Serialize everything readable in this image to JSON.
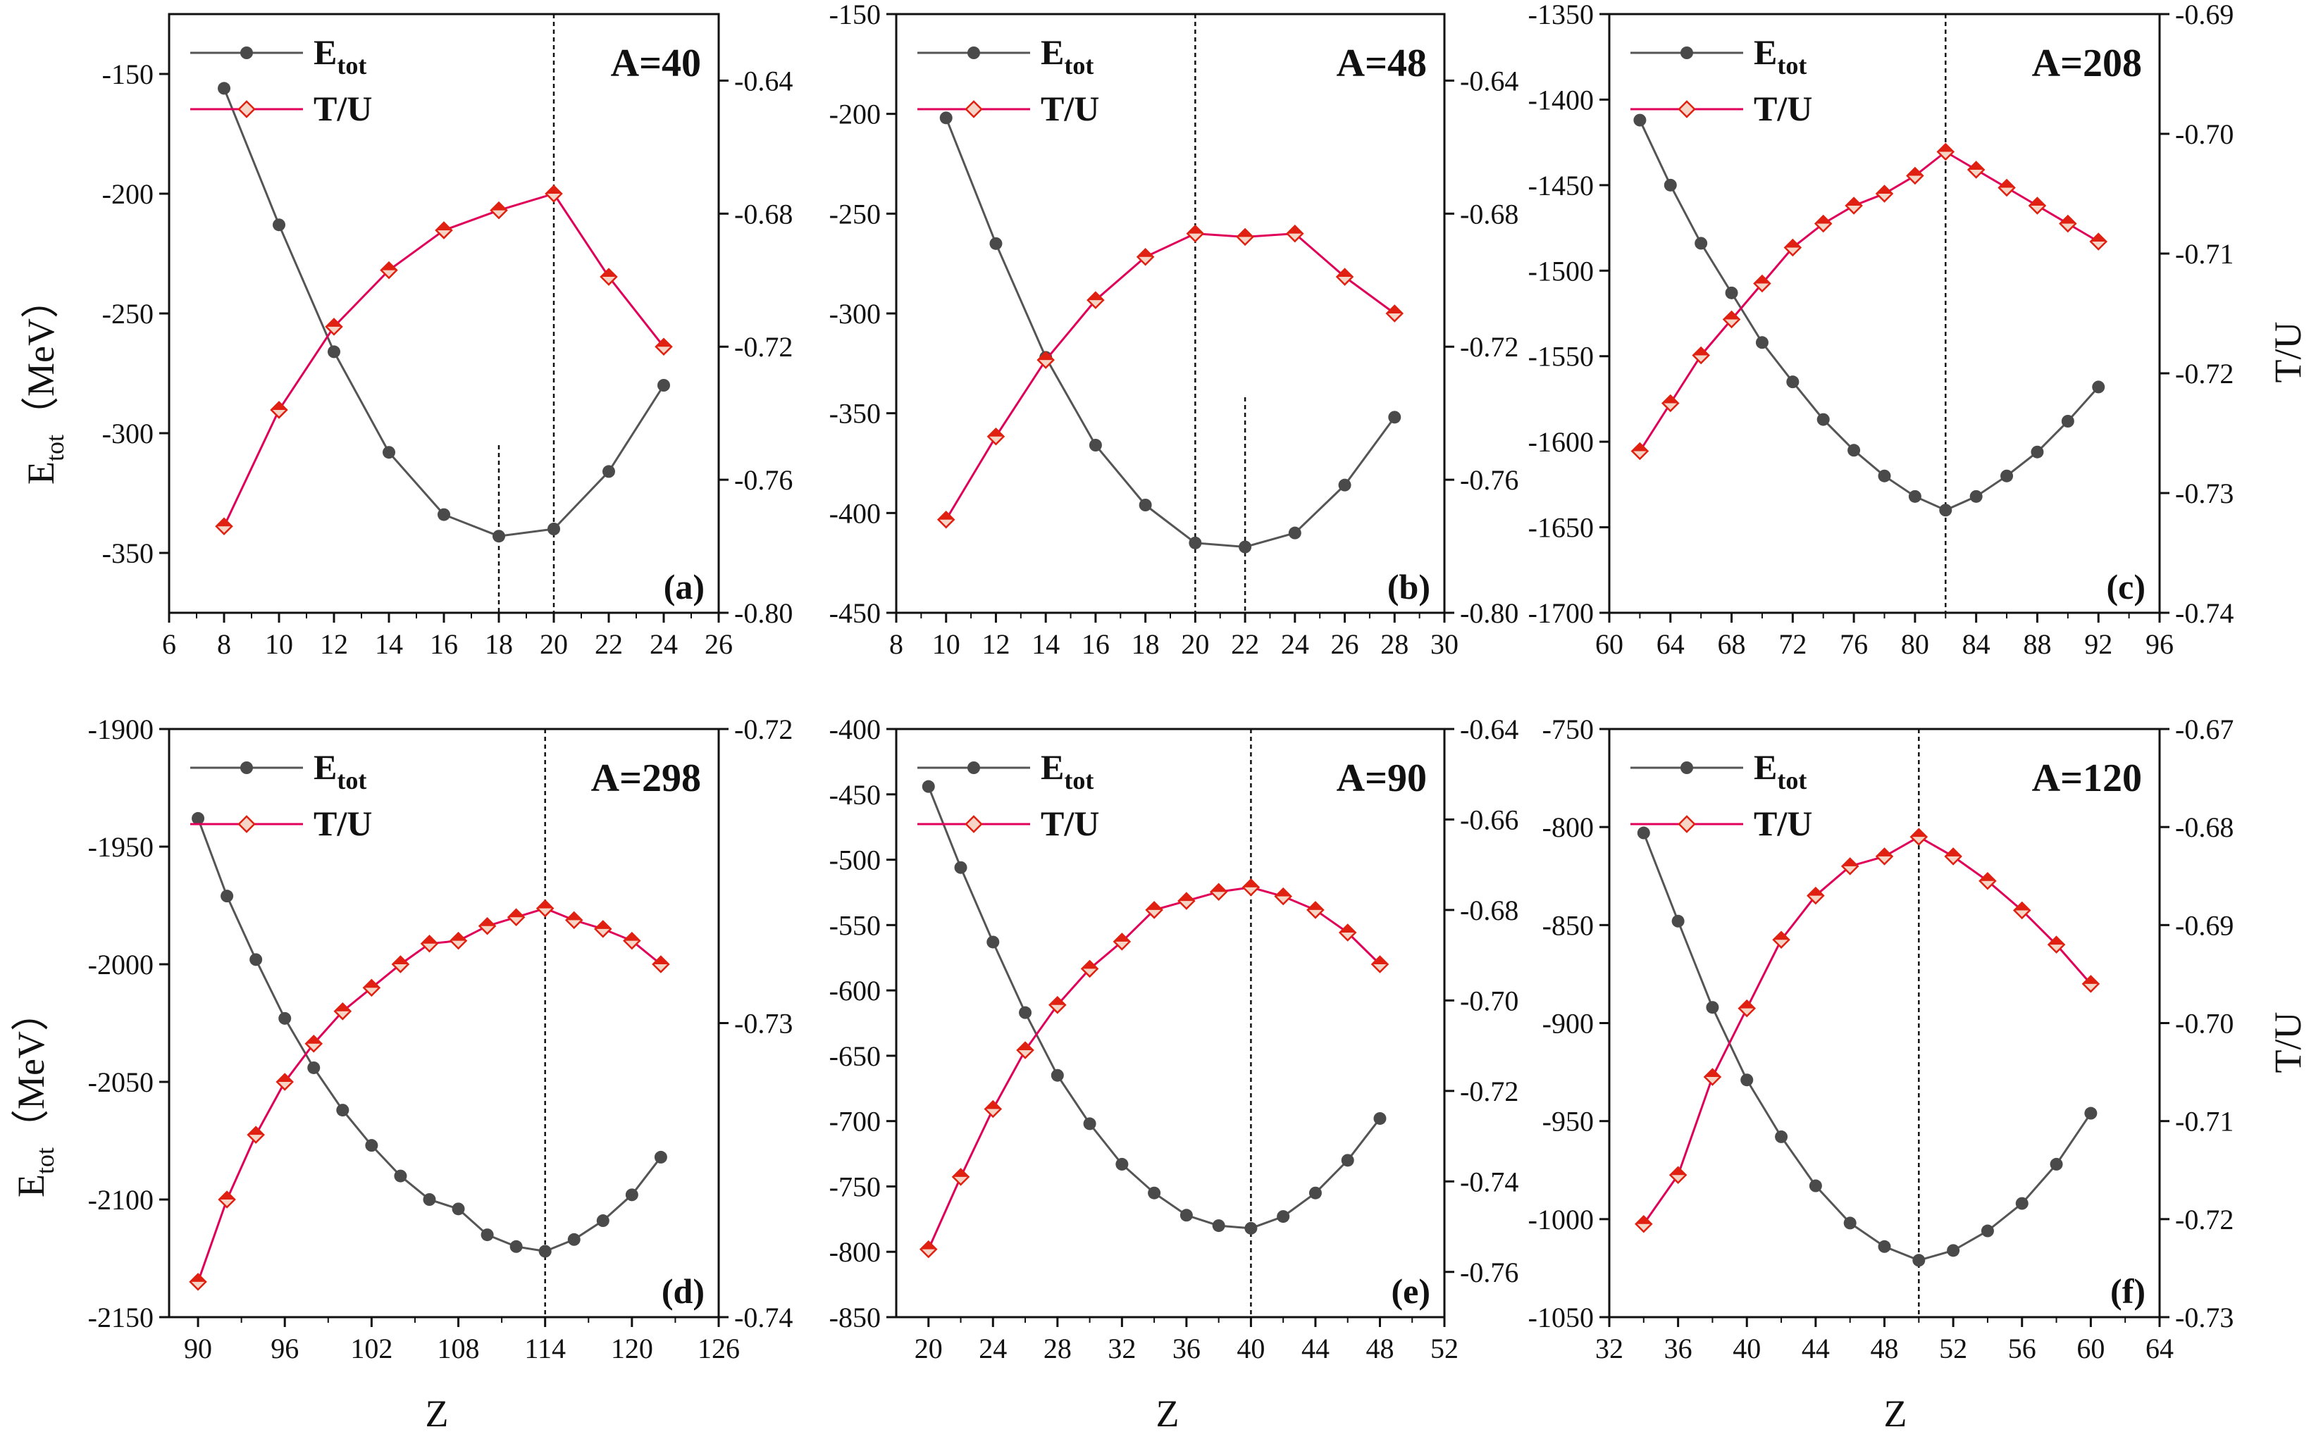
{
  "figure": {
    "left_axis_title_main": "E",
    "left_axis_title_sub": "tot",
    "left_axis_title_unit": "（MeV）",
    "right_axis_title": "T/U",
    "x_axis_title": "Z"
  },
  "colors": {
    "etot_line": "#555555",
    "etot_marker": "#4a4a4a",
    "tu_line": "#e0005a",
    "tu_marker_fill": "#e02010",
    "tu_marker_alt": "#f5d5c5",
    "axis": "#111111",
    "dashed_line": "#111111"
  },
  "chart_data": [
    {
      "type": "line",
      "title": "A=40",
      "tag": "(a)",
      "xlabel": "",
      "ylabel": "Etot（MeV）",
      "y2label": "",
      "xlim": [
        6,
        26
      ],
      "ylim": [
        -375,
        -125
      ],
      "y2lim": [
        -0.8,
        -0.62
      ],
      "xticks": [
        "6",
        "8",
        "10",
        "12",
        "14",
        "16",
        "18",
        "20",
        "22",
        "24",
        "26"
      ],
      "yticks": [
        "-150",
        "-200",
        "-250",
        "-300",
        "-350"
      ],
      "y2ticks": [
        "-0.64",
        "-0.68",
        "-0.72",
        "-0.76",
        "-0.80"
      ],
      "legend": [
        "E",
        "T/U"
      ],
      "legend_sub": [
        "tot",
        ""
      ],
      "vlines": [
        {
          "x": 18,
          "y_top": -305
        },
        {
          "x": 20,
          "y_top": -125
        }
      ],
      "series": [
        {
          "name": "Etot",
          "axis": "left",
          "x": [
            8,
            10,
            12,
            14,
            16,
            18,
            20,
            22,
            24
          ],
          "values": [
            -156,
            -213,
            -266,
            -308,
            -334,
            -343,
            -340,
            -316,
            -280
          ]
        },
        {
          "name": "T/U",
          "axis": "right",
          "x": [
            8,
            10,
            12,
            14,
            16,
            18,
            20,
            22,
            24
          ],
          "values": [
            -0.774,
            -0.739,
            -0.714,
            -0.697,
            -0.685,
            -0.679,
            -0.674,
            -0.699,
            -0.72
          ]
        }
      ]
    },
    {
      "type": "line",
      "title": "A=48",
      "tag": "(b)",
      "xlabel": "",
      "ylabel": "",
      "y2label": "",
      "xlim": [
        8,
        30
      ],
      "ylim": [
        -450,
        -150
      ],
      "y2lim": [
        -0.8,
        -0.62
      ],
      "xticks": [
        "8",
        "10",
        "12",
        "14",
        "16",
        "18",
        "20",
        "22",
        "24",
        "26",
        "28",
        "30"
      ],
      "yticks": [
        "-150",
        "-200",
        "-250",
        "-300",
        "-350",
        "-400",
        "-450"
      ],
      "y2ticks": [
        "-0.64",
        "-0.68",
        "-0.72",
        "-0.76",
        "-0.80"
      ],
      "legend": [
        "E",
        "T/U"
      ],
      "legend_sub": [
        "tot",
        ""
      ],
      "vlines": [
        {
          "x": 20,
          "y_top": -150
        },
        {
          "x": 22,
          "y_top": -342
        }
      ],
      "series": [
        {
          "name": "Etot",
          "axis": "left",
          "x": [
            10,
            12,
            14,
            16,
            18,
            20,
            22,
            24,
            26,
            28
          ],
          "values": [
            -202,
            -265,
            -322,
            -366,
            -396,
            -415,
            -417,
            -410,
            -386,
            -352
          ]
        },
        {
          "name": "T/U",
          "axis": "right",
          "x": [
            10,
            12,
            14,
            16,
            18,
            20,
            22,
            24,
            26,
            28
          ],
          "values": [
            -0.772,
            -0.747,
            -0.724,
            -0.706,
            -0.693,
            -0.686,
            -0.687,
            -0.686,
            -0.699,
            -0.71
          ]
        }
      ]
    },
    {
      "type": "line",
      "title": "A=208",
      "tag": "(c)",
      "xlabel": "",
      "ylabel": "",
      "y2label": "T/U",
      "xlim": [
        60,
        96
      ],
      "ylim": [
        -1700,
        -1350
      ],
      "y2lim": [
        -0.74,
        -0.69
      ],
      "xticks": [
        "60",
        "64",
        "68",
        "72",
        "76",
        "80",
        "84",
        "88",
        "92",
        "96"
      ],
      "yticks": [
        "-1350",
        "-1400",
        "-1450",
        "-1500",
        "-1550",
        "-1600",
        "-1650",
        "-1700"
      ],
      "y2ticks": [
        "-0.69",
        "-0.70",
        "-0.71",
        "-0.72",
        "-0.73",
        "-0.74"
      ],
      "legend": [
        "E",
        "T/U"
      ],
      "legend_sub": [
        "tot",
        ""
      ],
      "vlines": [
        {
          "x": 82,
          "y_top": -1350
        }
      ],
      "series": [
        {
          "name": "Etot",
          "axis": "left",
          "x": [
            62,
            64,
            66,
            68,
            70,
            72,
            74,
            76,
            78,
            80,
            82,
            84,
            86,
            88,
            90,
            92
          ],
          "values": [
            -1412,
            -1450,
            -1484,
            -1513,
            -1542,
            -1565,
            -1587,
            -1605,
            -1620,
            -1632,
            -1640,
            -1632,
            -1620,
            -1606,
            -1588,
            -1568
          ]
        },
        {
          "name": "T/U",
          "axis": "right",
          "x": [
            62,
            64,
            66,
            68,
            70,
            72,
            74,
            76,
            78,
            80,
            82,
            84,
            86,
            88,
            90,
            92
          ],
          "values": [
            -0.7265,
            -0.7225,
            -0.7185,
            -0.7155,
            -0.7125,
            -0.7095,
            -0.7075,
            -0.706,
            -0.705,
            -0.7035,
            -0.7015,
            -0.703,
            -0.7045,
            -0.706,
            -0.7075,
            -0.709
          ]
        }
      ]
    },
    {
      "type": "line",
      "title": "A=298",
      "tag": "(d)",
      "xlabel": "Z",
      "ylabel": "Etot（MeV）",
      "y2label": "",
      "xlim": [
        88,
        126
      ],
      "ylim": [
        -2150,
        -1900
      ],
      "y2lim": [
        -0.74,
        -0.72
      ],
      "xticks": [
        "90",
        "96",
        "102",
        "108",
        "114",
        "120",
        "126"
      ],
      "xtick_values": [
        90,
        96,
        102,
        108,
        114,
        120,
        126
      ],
      "yticks": [
        "-1900",
        "-1950",
        "-2000",
        "-2050",
        "-2100",
        "-2150"
      ],
      "y2ticks": [
        "-0.72",
        "-0.73",
        "-0.74"
      ],
      "legend": [
        "E",
        "T/U"
      ],
      "legend_sub": [
        "tot",
        ""
      ],
      "vlines": [
        {
          "x": 114,
          "y_top": -1900
        }
      ],
      "series": [
        {
          "name": "Etot",
          "axis": "left",
          "x": [
            90,
            92,
            94,
            96,
            98,
            100,
            102,
            104,
            106,
            108,
            110,
            112,
            114,
            116,
            118,
            120,
            122
          ],
          "values": [
            -1938,
            -1971,
            -1998,
            -2023,
            -2044,
            -2062,
            -2077,
            -2090,
            -2100,
            -2104,
            -2115,
            -2120,
            -2122,
            -2117,
            -2109,
            -2098,
            -2082
          ]
        },
        {
          "name": "T/U",
          "axis": "right",
          "x": [
            90,
            92,
            94,
            96,
            98,
            100,
            102,
            104,
            106,
            108,
            110,
            112,
            114,
            116,
            118,
            120,
            122
          ],
          "values": [
            -0.7388,
            -0.736,
            -0.7338,
            -0.732,
            -0.7307,
            -0.7296,
            -0.7288,
            -0.728,
            -0.7273,
            -0.7272,
            -0.7267,
            -0.7264,
            -0.7261,
            -0.7265,
            -0.7268,
            -0.7272,
            -0.728
          ]
        }
      ]
    },
    {
      "type": "line",
      "title": "A=90",
      "tag": "(e)",
      "xlabel": "Z",
      "ylabel": "",
      "y2label": "",
      "xlim": [
        18,
        52
      ],
      "ylim": [
        -850,
        -400
      ],
      "y2lim": [
        -0.77,
        -0.64
      ],
      "xticks": [
        "20",
        "24",
        "28",
        "32",
        "36",
        "40",
        "44",
        "48",
        "52"
      ],
      "xtick_values": [
        20,
        24,
        28,
        32,
        36,
        40,
        44,
        48,
        52
      ],
      "yticks": [
        "-400",
        "-450",
        "-500",
        "-550",
        "-600",
        "-650",
        "-700",
        "-750",
        "-800",
        "-850"
      ],
      "y2ticks": [
        "-0.64",
        "-0.66",
        "-0.68",
        "-0.70",
        "-0.72",
        "-0.74",
        "-0.76"
      ],
      "legend": [
        "E",
        "T/U"
      ],
      "legend_sub": [
        "tot",
        ""
      ],
      "vlines": [
        {
          "x": 40,
          "y_top": -400
        }
      ],
      "series": [
        {
          "name": "Etot",
          "axis": "left",
          "x": [
            20,
            22,
            24,
            26,
            28,
            30,
            32,
            34,
            36,
            38,
            40,
            42,
            44,
            46,
            48
          ],
          "values": [
            -444,
            -506,
            -563,
            -617,
            -665,
            -702,
            -733,
            -755,
            -772,
            -780,
            -782,
            -773,
            -755,
            -730,
            -698
          ]
        },
        {
          "name": "T/U",
          "axis": "right",
          "x": [
            20,
            22,
            24,
            26,
            28,
            30,
            32,
            34,
            36,
            38,
            40,
            42,
            44,
            46,
            48
          ],
          "values": [
            -0.755,
            -0.739,
            -0.724,
            -0.711,
            -0.701,
            -0.693,
            -0.687,
            -0.68,
            -0.678,
            -0.676,
            -0.675,
            -0.677,
            -0.68,
            -0.685,
            -0.692
          ]
        }
      ]
    },
    {
      "type": "line",
      "title": "A=120",
      "tag": "(f)",
      "xlabel": "Z",
      "ylabel": "",
      "y2label": "T/U",
      "xlim": [
        32,
        64
      ],
      "ylim": [
        -1050,
        -750
      ],
      "y2lim": [
        -0.73,
        -0.67
      ],
      "xticks": [
        "32",
        "36",
        "40",
        "44",
        "48",
        "52",
        "56",
        "60",
        "64"
      ],
      "xtick_values": [
        32,
        36,
        40,
        44,
        48,
        52,
        56,
        60,
        64
      ],
      "yticks": [
        "-750",
        "-800",
        "-850",
        "-900",
        "-950",
        "-1000",
        "-1050"
      ],
      "y2ticks": [
        "-0.67",
        "-0.68",
        "-0.69",
        "-0.70",
        "-0.71",
        "-0.72",
        "-0.73"
      ],
      "legend": [
        "E",
        "T/U"
      ],
      "legend_sub": [
        "tot",
        ""
      ],
      "vlines": [
        {
          "x": 50,
          "y_top": -750
        }
      ],
      "series": [
        {
          "name": "Etot",
          "axis": "left",
          "x": [
            34,
            36,
            38,
            40,
            42,
            44,
            46,
            48,
            50,
            52,
            54,
            56,
            58,
            60
          ],
          "values": [
            -803,
            -848,
            -892,
            -929,
            -958,
            -983,
            -1002,
            -1014,
            -1021,
            -1016,
            -1006,
            -992,
            -972,
            -946
          ]
        },
        {
          "name": "T/U",
          "axis": "right",
          "x": [
            34,
            36,
            38,
            40,
            42,
            44,
            46,
            48,
            50,
            52,
            54,
            56,
            58,
            60
          ],
          "values": [
            -0.7205,
            -0.7155,
            -0.7055,
            -0.6985,
            -0.6915,
            -0.687,
            -0.684,
            -0.683,
            -0.681,
            -0.683,
            -0.6855,
            -0.6885,
            -0.692,
            -0.696
          ]
        }
      ]
    }
  ]
}
